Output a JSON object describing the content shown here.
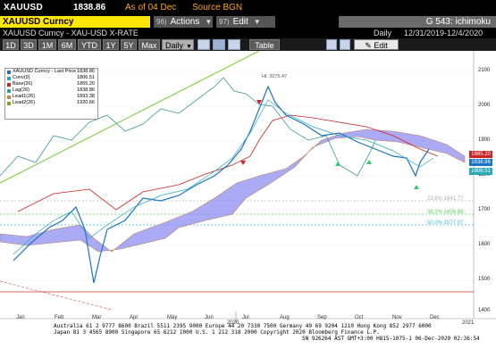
{
  "header": {
    "ticker": "XAUUSD",
    "price": "1838.86",
    "as_of": "As of 04 Dec",
    "source": "Source BGN"
  },
  "command_bar": {
    "security": "XAUUSD Curncy",
    "actions": {
      "num": "96)",
      "label": "Actions"
    },
    "edit": {
      "num": "97)",
      "label": "Edit"
    },
    "title": "G 543: ichimoku"
  },
  "info_bar": {
    "name": "XAUUSD Curncy - XAU-USD X-RATE",
    "periodicity": "Daily",
    "date_range": "12/31/2019-12/4/2020"
  },
  "toolbar": {
    "ranges": [
      "1D",
      "3D",
      "1M",
      "6M",
      "YTD",
      "1Y",
      "5Y",
      "Max"
    ],
    "interval": "Daily",
    "table": "Table",
    "edit_chart": "Edit Chart"
  },
  "legend": {
    "items": [
      {
        "label": "XAUUSD Curncy - Last Price",
        "value": "1838.86",
        "color": "#1a73c6"
      },
      {
        "label": "Conv(9)",
        "value": "1806.51",
        "color": "#2aa8b8"
      },
      {
        "label": "Base(26)",
        "value": "1865.20",
        "color": "#cc2222"
      },
      {
        "label": "Lag(26)",
        "value": "1838.86",
        "color": "#3a9a9a"
      },
      {
        "label": "Lead1(26)",
        "value": "1893.38",
        "color": "#d08040"
      },
      {
        "label": "Lead2(26)",
        "value": "1920.66",
        "color": "#8aa020"
      }
    ]
  },
  "chart": {
    "high_label": "Hi: 2075.47",
    "y_ticks": [
      "2100",
      "2000",
      "1900",
      "1800",
      "1700",
      "1600",
      "1500",
      "1400"
    ],
    "price_tags": [
      {
        "text": "1865.20",
        "color": "#cc2222"
      },
      {
        "text": "1838.86",
        "color": "#1a73c6"
      },
      {
        "text": "1806.51",
        "color": "#2aa8b8"
      }
    ],
    "fib_labels": [
      {
        "text": "23.6% 1641.77",
        "color": "#b0b0b0"
      },
      {
        "text": "38.2% 1606.88",
        "color": "#66cc66"
      },
      {
        "text": "50.0% 1577.07",
        "color": "#44bbdd"
      }
    ],
    "x_months": [
      "Jan",
      "Feb",
      "Mar",
      "Apr",
      "May",
      "Jun",
      "Jul",
      "Aug",
      "Sep",
      "Oct",
      "Nov",
      "Dec"
    ],
    "x_years": [
      "2020",
      "2021"
    ]
  },
  "footer": {
    "line1": "Australia 61 2 9777 8600 Brazil 5511 2395 9000 Europe 44 20 7330 7500 Germany 49 69 9204 1210 Hong Kong 852 2977 6000",
    "line2": "Japan 81 3 4565 8900       Singapore 65 6212 1000       U.S. 1 212 318 2000        Copyright 2020 Bloomberg Finance L.P.",
    "line3": "SN 926264 AST  GMT+3:00 H815-1075-1 06-Dec-2020 02:36:54"
  }
}
